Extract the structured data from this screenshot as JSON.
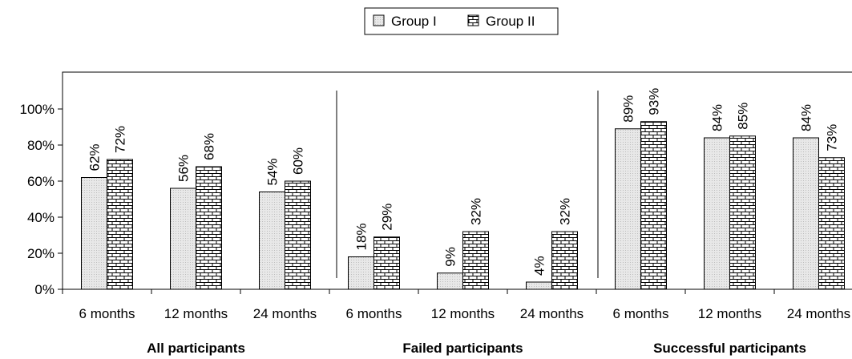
{
  "chart_data": {
    "type": "bar",
    "ytick_labels": [
      "0%",
      "20%",
      "40%",
      "60%",
      "80%",
      "100%"
    ],
    "ylim": [
      0,
      100
    ],
    "ytick_step": 20,
    "legend_placement": "top-center",
    "groups": [
      {
        "label": "All participants",
        "categories": [
          "6 months",
          "12 months",
          "24 months"
        ],
        "series": [
          {
            "name": "Group I",
            "values": [
              62,
              56,
              54
            ],
            "labels": [
              "62%",
              "56%",
              "54%"
            ]
          },
          {
            "name": "Group II",
            "values": [
              72,
              68,
              60
            ],
            "labels": [
              "72%",
              "68%",
              "60%"
            ]
          }
        ]
      },
      {
        "label": "Failed participants",
        "categories": [
          "6 months",
          "12 months",
          "24 months"
        ],
        "series": [
          {
            "name": "Group I",
            "values": [
              18,
              9,
              4
            ],
            "labels": [
              "18%",
              "9%",
              "4%"
            ]
          },
          {
            "name": "Group II",
            "values": [
              29,
              32,
              32
            ],
            "labels": [
              "29%",
              "32%",
              "32%"
            ]
          }
        ]
      },
      {
        "label": "Successful participants",
        "categories": [
          "6 months",
          "12 months",
          "24 months"
        ],
        "series": [
          {
            "name": "Group I",
            "values": [
              89,
              84,
              84
            ],
            "labels": [
              "89%",
              "84%",
              "84%"
            ]
          },
          {
            "name": "Group II",
            "values": [
              93,
              85,
              73
            ],
            "labels": [
              "93%",
              "85%",
              "73%"
            ]
          }
        ]
      }
    ],
    "legend": [
      "Group I",
      "Group II"
    ],
    "colors": {
      "group1_fill": "#e6e6e6",
      "group2_fill": "#ffffff",
      "stroke": "#000000"
    }
  }
}
